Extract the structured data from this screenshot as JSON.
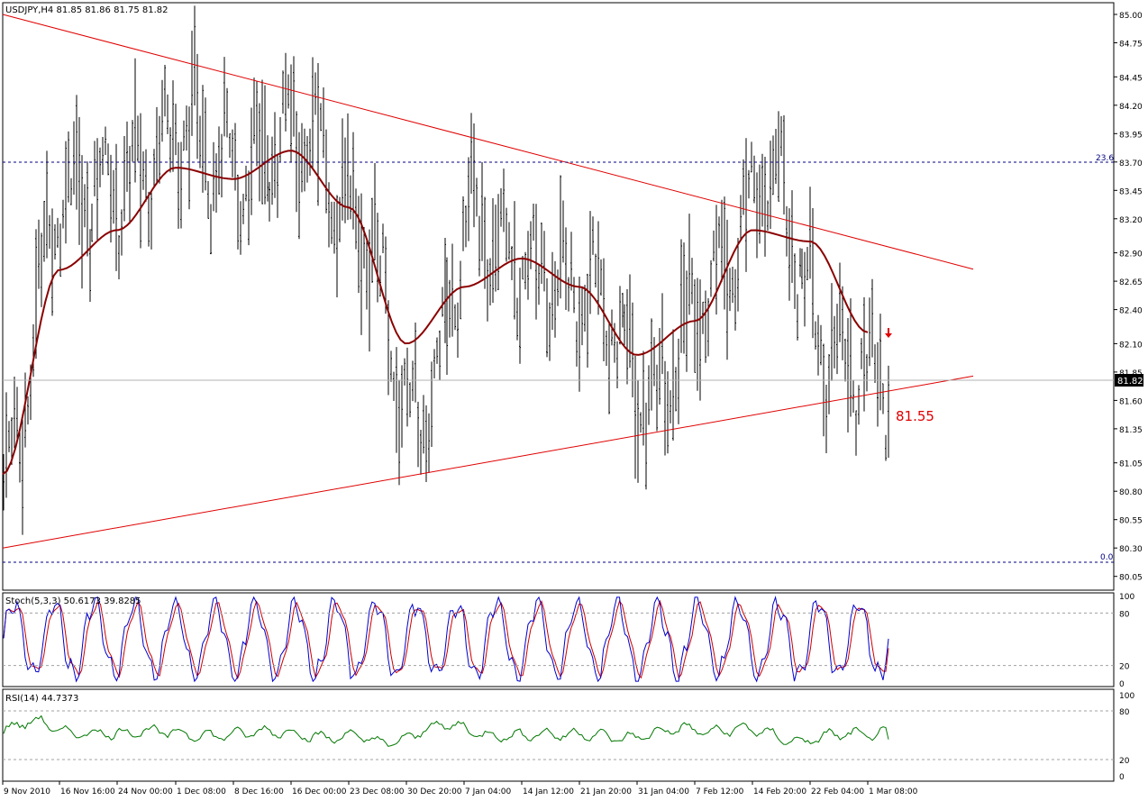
{
  "main_header": "USDJPY,H4  81.85 81.86 81.75 81.82",
  "stoch_header": "Stoch(5,3,3) 50.6173 39.8285",
  "rsi_header": "RSI(14) 44.7373",
  "price_axis": [
    "85.00",
    "84.75",
    "84.45",
    "84.20",
    "83.95",
    "83.70",
    "83.45",
    "83.20",
    "82.90",
    "82.65",
    "82.40",
    "82.10",
    "81.85",
    "81.60",
    "81.35",
    "81.05",
    "80.80",
    "80.55",
    "80.30",
    "80.05"
  ],
  "stoch_axis": [
    "100",
    "80",
    "20",
    "0"
  ],
  "rsi_axis": [
    "100",
    "80",
    "20",
    "0"
  ],
  "time_axis": [
    "9 Nov 2010",
    "16 Nov 16:00",
    "24 Nov 00:00",
    "1 Dec 08:00",
    "8 Dec 16:00",
    "16 Dec 00:00",
    "23 Dec 08:00",
    "30 Dec 20:00",
    "7 Jan 04:00",
    "14 Jan 12:00",
    "21 Jan 20:00",
    "31 Jan 04:00",
    "7 Feb 12:00",
    "14 Feb 20:00",
    "22 Feb 04:00",
    "1 Mar 08:00"
  ],
  "current_price": "81.82",
  "support_label": "81.55",
  "fib_top_label": "23.6",
  "fib_bottom_label": "0.0",
  "colors": {
    "bars": "#000000",
    "ma": "#8b0000",
    "trendline": "#e00000",
    "stoch_main": "#0000cc",
    "stoch_signal": "#cc0000",
    "rsi": "#007700",
    "arrow": "#e00000",
    "grid": "#808080"
  },
  "chart_data": {
    "type": "line",
    "symbol": "USDJPY",
    "timeframe": "H4",
    "ohlc_last": {
      "open": 81.85,
      "high": 81.86,
      "low": 81.75,
      "close": 81.82
    },
    "ylim": [
      80.0,
      85.0
    ],
    "x_ticks": [
      "9 Nov 2010",
      "16 Nov 16:00",
      "24 Nov 00:00",
      "1 Dec 08:00",
      "8 Dec 16:00",
      "16 Dec 00:00",
      "23 Dec 08:00",
      "30 Dec 20:00",
      "7 Jan 04:00",
      "14 Jan 12:00",
      "21 Jan 20:00",
      "31 Jan 04:00",
      "7 Feb 12:00",
      "14 Feb 20:00",
      "22 Feb 04:00",
      "1 Mar 08:00"
    ],
    "price_path": [
      {
        "x": "9 Nov 2010",
        "y": 80.9
      },
      {
        "x": "16 Nov 16:00",
        "y": 83.4
      },
      {
        "x": "24 Nov 00:00",
        "y": 83.5
      },
      {
        "x": "1 Dec 08:00",
        "y": 84.0
      },
      {
        "x": "8 Dec 16:00",
        "y": 83.6
      },
      {
        "x": "16 Dec 00:00",
        "y": 84.0
      },
      {
        "x": "23 Dec 08:00",
        "y": 83.2
      },
      {
        "x": "30 Dec 20:00",
        "y": 81.4
      },
      {
        "x": "7 Jan 04:00",
        "y": 83.2
      },
      {
        "x": "14 Jan 12:00",
        "y": 82.7
      },
      {
        "x": "21 Jan 20:00",
        "y": 82.5
      },
      {
        "x": "31 Jan 04:00",
        "y": 81.6
      },
      {
        "x": "7 Feb 12:00",
        "y": 82.6
      },
      {
        "x": "14 Feb 20:00",
        "y": 83.6
      },
      {
        "x": "22 Feb 04:00",
        "y": 82.0
      },
      {
        "x": "1 Mar 08:00",
        "y": 81.82
      }
    ],
    "moving_average": [
      {
        "x": "9 Nov 2010",
        "y": 80.95
      },
      {
        "x": "16 Nov 16:00",
        "y": 82.75
      },
      {
        "x": "24 Nov 00:00",
        "y": 83.1
      },
      {
        "x": "1 Dec 08:00",
        "y": 83.65
      },
      {
        "x": "8 Dec 16:00",
        "y": 83.55
      },
      {
        "x": "16 Dec 00:00",
        "y": 83.8
      },
      {
        "x": "23 Dec 08:00",
        "y": 83.3
      },
      {
        "x": "30 Dec 20:00",
        "y": 82.1
      },
      {
        "x": "7 Jan 04:00",
        "y": 82.6
      },
      {
        "x": "14 Jan 12:00",
        "y": 82.85
      },
      {
        "x": "21 Jan 20:00",
        "y": 82.6
      },
      {
        "x": "31 Jan 04:00",
        "y": 82.0
      },
      {
        "x": "7 Feb 12:00",
        "y": 82.3
      },
      {
        "x": "14 Feb 20:00",
        "y": 83.1
      },
      {
        "x": "22 Feb 04:00",
        "y": 83.0
      },
      {
        "x": "1 Mar 08:00",
        "y": 82.2
      }
    ],
    "trendlines": [
      {
        "name": "upper",
        "from": {
          "x": "9 Nov 2010",
          "y": 85.0
        },
        "to": {
          "x": "1 Mar 08:00",
          "y": 83.0
        }
      },
      {
        "name": "lower",
        "from": {
          "x": "9 Nov 2010",
          "y": 80.3
        },
        "to": {
          "x": "1 Mar 08:00",
          "y": 81.65
        }
      }
    ],
    "fibonacci": [
      {
        "level": "23.6",
        "price": 83.7
      },
      {
        "level": "0.0",
        "price": 80.2
      }
    ],
    "support_level": 81.55,
    "stochastic": {
      "k": 50.6173,
      "d": 39.8285,
      "levels": [
        20,
        80
      ]
    },
    "rsi": {
      "value": 44.7373,
      "levels": [
        20,
        80
      ]
    }
  }
}
